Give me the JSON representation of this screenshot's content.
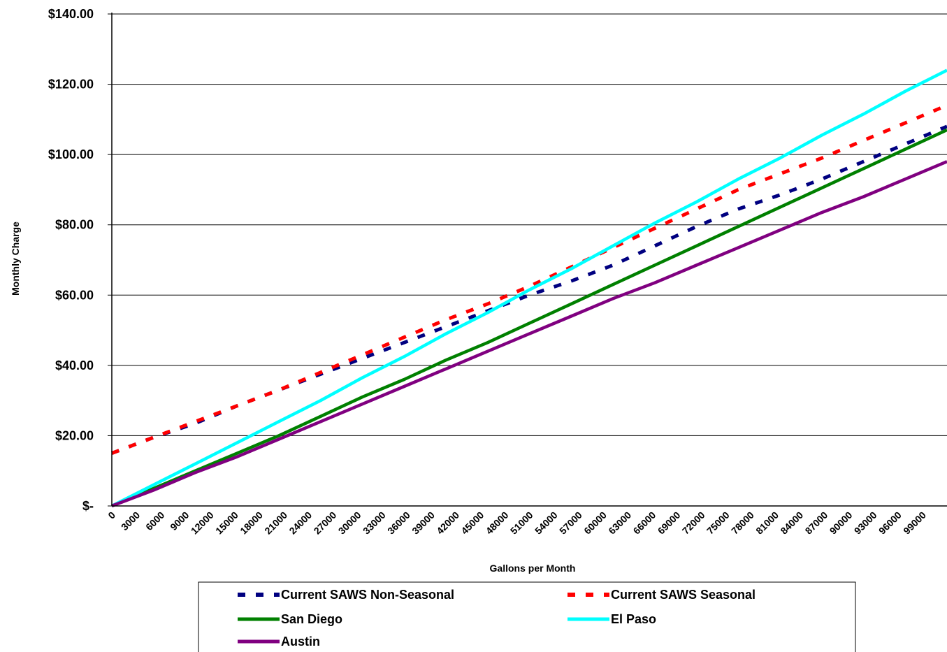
{
  "chart_data": {
    "type": "line",
    "title": "",
    "xlabel": "Gallons per Month",
    "ylabel": "Monthly Charge",
    "xlim": [
      0,
      100000
    ],
    "ylim": [
      0,
      140
    ],
    "y_ticks": [
      0,
      20,
      40,
      60,
      80,
      100,
      120,
      140
    ],
    "y_tick_labels": [
      "$-",
      "$20.00",
      "$40.00",
      "$60.00",
      "$80.00",
      "$100.00",
      "$120.00",
      "$140.00"
    ],
    "x_tick_labels": [
      "0",
      "3000",
      "6000",
      "9000",
      "12000",
      "15000",
      "18000",
      "21000",
      "24000",
      "27000",
      "30000",
      "33000",
      "36000",
      "39000",
      "42000",
      "45000",
      "48000",
      "51000",
      "54000",
      "57000",
      "60000",
      "63000",
      "66000",
      "69000",
      "72000",
      "75000",
      "78000",
      "81000",
      "84000",
      "87000",
      "90000",
      "93000",
      "96000",
      "99000"
    ],
    "grid": "horizontal",
    "legend_position": "bottom",
    "series": [
      {
        "name": "Current SAWS Non-Seasonal",
        "color": "#000080",
        "style": "dashed",
        "x": [
          0,
          5000,
          10000,
          15000,
          20000,
          25000,
          30000,
          35000,
          40000,
          45000,
          50000,
          55000,
          60000,
          65000,
          70000,
          75000,
          80000,
          85000,
          90000,
          95000,
          100000
        ],
        "y": [
          15,
          19.5,
          23.5,
          28.5,
          33,
          37.5,
          42,
          46.5,
          51,
          55.5,
          60,
          64,
          68.5,
          74,
          79.5,
          84.5,
          88.5,
          93,
          98,
          103,
          108
        ]
      },
      {
        "name": "Current SAWS Seasonal",
        "color": "#ff0000",
        "style": "dashed",
        "x": [
          0,
          5000,
          10000,
          15000,
          20000,
          25000,
          30000,
          35000,
          40000,
          45000,
          50000,
          55000,
          60000,
          65000,
          70000,
          75000,
          80000,
          85000,
          90000,
          95000,
          100000
        ],
        "y": [
          15,
          19.5,
          24,
          28.5,
          33,
          38,
          43,
          48,
          53,
          57.5,
          62.5,
          68,
          73.5,
          79,
          84.5,
          90,
          94.5,
          99,
          104,
          109,
          114
        ]
      },
      {
        "name": "San Diego",
        "color": "#008000",
        "style": "solid",
        "x": [
          0,
          5000,
          10000,
          15000,
          20000,
          25000,
          30000,
          35000,
          40000,
          45000,
          50000,
          55000,
          60000,
          65000,
          70000,
          75000,
          80000,
          85000,
          90000,
          95000,
          100000
        ],
        "y": [
          0,
          5,
          10,
          15,
          20,
          25.5,
          31,
          36,
          41.5,
          46.5,
          52,
          57.5,
          63,
          68.5,
          74,
          79.5,
          85,
          90.5,
          96,
          101.5,
          107
        ]
      },
      {
        "name": "El Paso",
        "color": "#00ffff",
        "style": "solid",
        "x": [
          0,
          5000,
          10000,
          15000,
          20000,
          25000,
          30000,
          35000,
          40000,
          45000,
          50000,
          55000,
          60000,
          65000,
          70000,
          75000,
          80000,
          85000,
          90000,
          95000,
          100000
        ],
        "y": [
          0,
          6,
          12,
          18,
          24,
          30,
          36.5,
          42.5,
          49,
          55,
          61.5,
          67.5,
          74,
          80.5,
          86.5,
          93,
          99,
          105.5,
          111.5,
          118,
          124
        ]
      },
      {
        "name": "Austin",
        "color": "#800080",
        "style": "solid",
        "x": [
          0,
          5000,
          10000,
          15000,
          20000,
          25000,
          30000,
          35000,
          40000,
          45000,
          50000,
          55000,
          60000,
          65000,
          70000,
          75000,
          80000,
          85000,
          90000,
          95000,
          100000
        ],
        "y": [
          0,
          4.5,
          9.5,
          14,
          19,
          24,
          29,
          34,
          39,
          44,
          49,
          54,
          59,
          63.5,
          68.5,
          73.5,
          78.5,
          83.5,
          88,
          93,
          98
        ]
      }
    ]
  }
}
